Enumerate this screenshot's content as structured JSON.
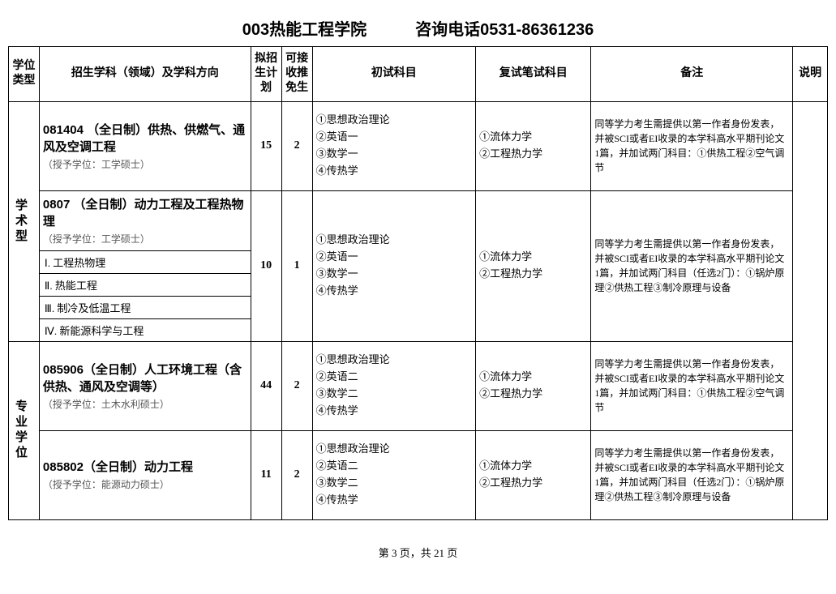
{
  "title": {
    "left": "003热能工程学院",
    "right": "咨询电话0531-86361236"
  },
  "headers": {
    "type": "学位类型",
    "subject": "招生学科（领域）及学科方向",
    "plan": "拟招生计划",
    "rec": "可接收推免生",
    "prelim": "初试科目",
    "retest": "复试笔试科目",
    "remark": "备注",
    "note": "说明"
  },
  "type1": "学术型",
  "type2": "专业学位",
  "row1": {
    "subject_main": "081404 （全日制）供热、供燃气、通风及空调工程",
    "subject_sub": "（授予学位：工学硕士）",
    "plan": "15",
    "rec": "2",
    "prelim": "①思想政治理论\n②英语一\n③数学一\n④传热学",
    "retest": "①流体力学\n②工程热力学",
    "remark": "同等学力考生需提供以第一作者身份发表，并被SCI或者EI收录的本学科高水平期刊论文1篇，并加试两门科目：①供热工程②空气调节"
  },
  "row2": {
    "subject_main": "0807 （全日制）动力工程及工程热物理",
    "subject_sub": "（授予学位：工学硕士）",
    "dir1": "Ⅰ. 工程热物理",
    "dir2": "Ⅱ. 热能工程",
    "dir3": "Ⅲ. 制冷及低温工程",
    "dir4": "Ⅳ. 新能源科学与工程",
    "plan": "10",
    "rec": "1",
    "prelim": "①思想政治理论\n②英语一\n③数学一\n④传热学",
    "retest": "①流体力学\n②工程热力学",
    "remark": "同等学力考生需提供以第一作者身份发表，并被SCI或者EI收录的本学科高水平期刊论文1篇，并加试两门科目（任选2门）：①锅炉原理②供热工程③制冷原理与设备"
  },
  "row3": {
    "subject_main": "085906（全日制）人工环境工程（含供热、通风及空调等）",
    "subject_sub": "（授予学位：土木水利硕士）",
    "plan": "44",
    "rec": "2",
    "prelim": "①思想政治理论\n②英语二\n③数学二\n④传热学",
    "retest": "①流体力学\n②工程热力学",
    "remark": "同等学力考生需提供以第一作者身份发表，并被SCI或者EI收录的本学科高水平期刊论文1篇，并加试两门科目：①供热工程②空气调节"
  },
  "row4": {
    "subject_main": "085802（全日制）动力工程",
    "subject_sub": "（授予学位：能源动力硕士）",
    "plan": "11",
    "rec": "2",
    "prelim": "①思想政治理论\n②英语二\n③数学二\n④传热学",
    "retest": "①流体力学\n②工程热力学",
    "remark": "同等学力考生需提供以第一作者身份发表，并被SCI或者EI收录的本学科高水平期刊论文1篇，并加试两门科目（任选2门）：①锅炉原理②供热工程③制冷原理与设备"
  },
  "footer": "第 3 页，共 21 页"
}
